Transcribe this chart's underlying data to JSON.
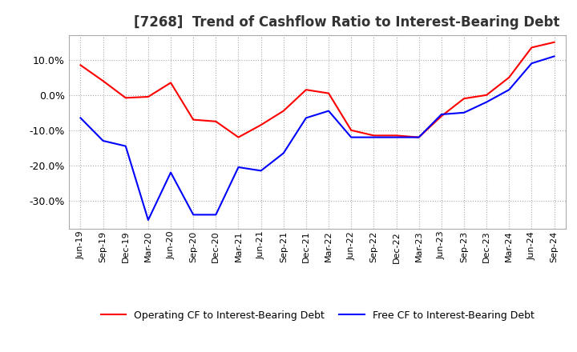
{
  "title": "[7268]  Trend of Cashflow Ratio to Interest-Bearing Debt",
  "title_fontsize": 12,
  "x_labels": [
    "Jun-19",
    "Sep-19",
    "Dec-19",
    "Mar-20",
    "Jun-20",
    "Sep-20",
    "Dec-20",
    "Mar-21",
    "Jun-21",
    "Sep-21",
    "Dec-21",
    "Mar-22",
    "Jun-22",
    "Sep-22",
    "Dec-22",
    "Mar-23",
    "Jun-23",
    "Sep-23",
    "Dec-23",
    "Mar-24",
    "Jun-24",
    "Sep-24"
  ],
  "operating_cf": [
    8.5,
    4.0,
    -0.8,
    -0.5,
    3.5,
    -7.0,
    -7.5,
    -12.0,
    -8.5,
    -4.5,
    1.5,
    0.5,
    -10.0,
    -11.5,
    -11.5,
    -12.0,
    -6.0,
    -1.0,
    0.0,
    5.0,
    13.5,
    15.0
  ],
  "free_cf": [
    -6.5,
    -13.0,
    -14.5,
    -35.5,
    -22.0,
    -34.0,
    -34.0,
    -20.5,
    -21.5,
    -16.5,
    -6.5,
    -4.5,
    -12.0,
    -12.0,
    -12.0,
    -12.0,
    -5.5,
    -5.0,
    -2.0,
    1.5,
    9.0,
    11.0
  ],
  "ylim": [
    -38,
    17
  ],
  "yticks": [
    10.0,
    0.0,
    -10.0,
    -20.0,
    -30.0
  ],
  "operating_color": "#ff0000",
  "free_color": "#0000ff",
  "grid_color": "#aaaaaa",
  "background_color": "#ffffff",
  "legend_operating": "Operating CF to Interest-Bearing Debt",
  "legend_free": "Free CF to Interest-Bearing Debt"
}
